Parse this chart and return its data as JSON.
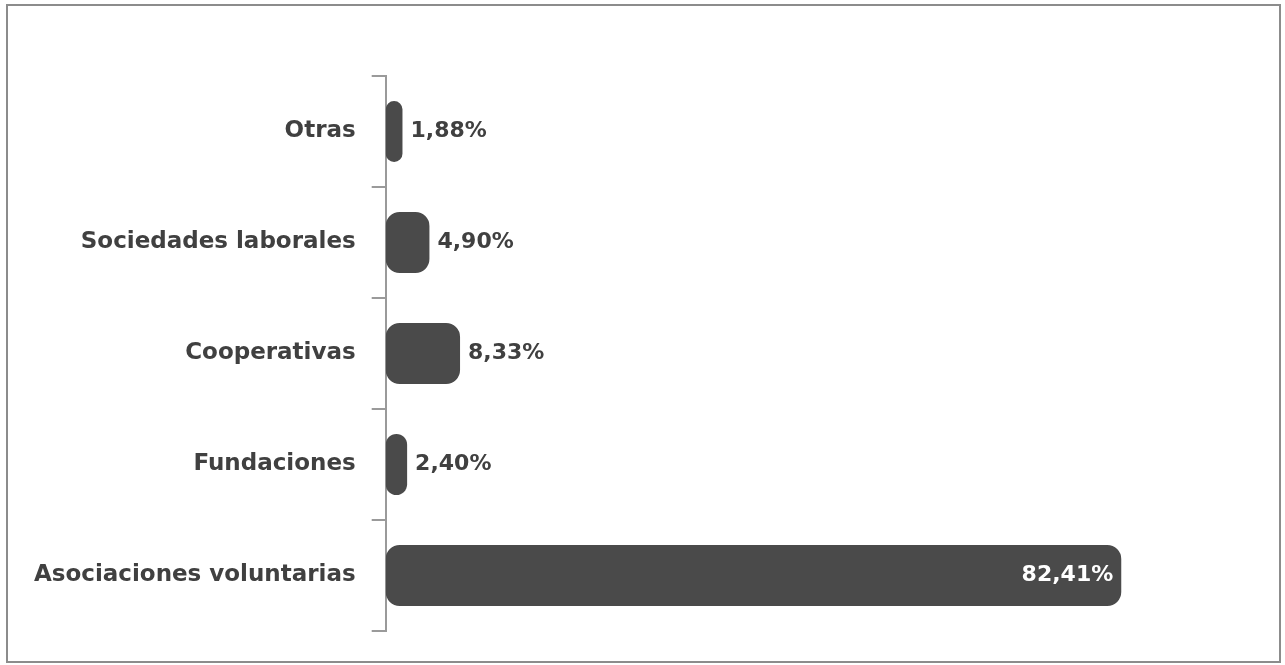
{
  "chart_data": {
    "type": "bar",
    "orientation": "horizontal",
    "categories": [
      "Otras",
      "Sociedades laborales",
      "Cooperativas",
      "Fundaciones",
      "Asociaciones voluntarias"
    ],
    "values": [
      1.88,
      4.9,
      8.33,
      2.4,
      82.41
    ],
    "value_labels": [
      "1,88%",
      "4,90%",
      "8,33%",
      "2,40%",
      "82,41%"
    ],
    "color": "#4a4a4a"
  }
}
